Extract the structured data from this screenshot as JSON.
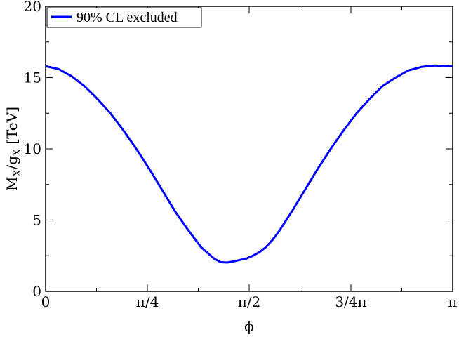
{
  "chart_data": {
    "type": "line",
    "xlabel": "ϕ",
    "ylabel": {
      "main": "M",
      "sub1": "X",
      "slash": "/g",
      "sub2": "X",
      "unit": " [TeV]"
    },
    "xlim": [
      0,
      3.14159
    ],
    "ylim": [
      0,
      20
    ],
    "xticks": [
      {
        "value": 0,
        "label": "0"
      },
      {
        "value": 0.7854,
        "label": "π/4"
      },
      {
        "value": 1.5708,
        "label": "π/2"
      },
      {
        "value": 2.3562,
        "label": "3/4π"
      },
      {
        "value": 3.14159,
        "label": "π"
      }
    ],
    "yticks": [
      {
        "value": 0,
        "label": "0"
      },
      {
        "value": 5,
        "label": "5"
      },
      {
        "value": 10,
        "label": "10"
      },
      {
        "value": 15,
        "label": "15"
      },
      {
        "value": 20,
        "label": "20"
      }
    ],
    "grid": false,
    "legend_position": "top-left",
    "series": [
      {
        "name": "90% CL excluded",
        "color": "#0000ff",
        "x": [
          0,
          0.1,
          0.2,
          0.3,
          0.4,
          0.5,
          0.6,
          0.7,
          0.8,
          0.9,
          1.0,
          1.1,
          1.2,
          1.3,
          1.35,
          1.4,
          1.45,
          1.5,
          1.55,
          1.6,
          1.65,
          1.7,
          1.75,
          1.8,
          1.9,
          2.0,
          2.1,
          2.2,
          2.3,
          2.4,
          2.5,
          2.6,
          2.7,
          2.8,
          2.9,
          3.0,
          3.1,
          3.14159
        ],
        "y": [
          15.8,
          15.6,
          15.1,
          14.4,
          13.5,
          12.5,
          11.3,
          10.0,
          8.6,
          7.1,
          5.6,
          4.3,
          3.1,
          2.3,
          2.05,
          2.02,
          2.1,
          2.2,
          2.3,
          2.5,
          2.75,
          3.1,
          3.6,
          4.2,
          5.6,
          7.1,
          8.6,
          10.0,
          11.3,
          12.5,
          13.5,
          14.4,
          15.0,
          15.5,
          15.75,
          15.85,
          15.8,
          15.8
        ]
      }
    ]
  }
}
